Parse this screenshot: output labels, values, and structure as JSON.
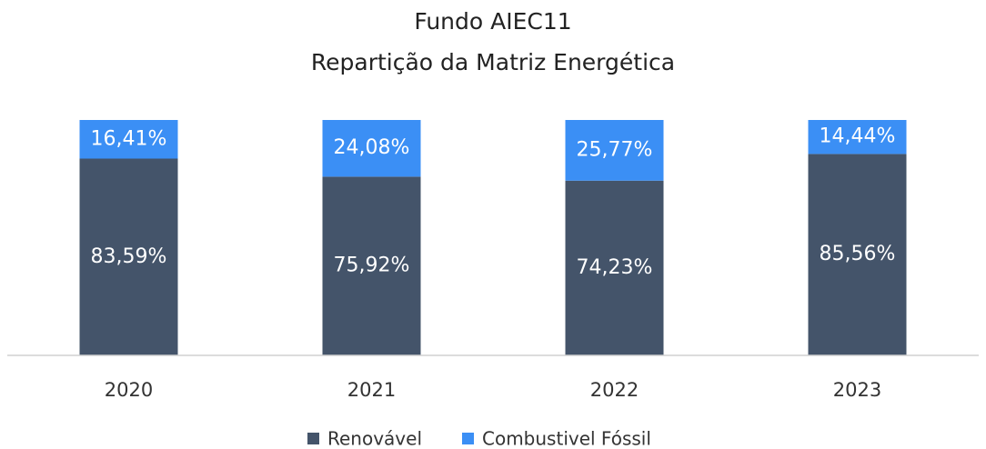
{
  "chart_data": {
    "type": "stacked_bar",
    "title": "Fundo AIEC11",
    "subtitle": "Repartição da Matriz Energética",
    "categories": [
      "2020",
      "2021",
      "2022",
      "2023"
    ],
    "series": [
      {
        "name": "Renovável",
        "color": "#44546a",
        "values": [
          83.59,
          75.92,
          74.23,
          85.56
        ],
        "value_labels": [
          "83,59%",
          "75,92%",
          "74,23%",
          "85,56%"
        ]
      },
      {
        "name": "Combustivel Fóssil",
        "color": "#3b8ff5",
        "values": [
          16.41,
          24.08,
          25.77,
          14.44
        ],
        "value_labels": [
          "16,41%",
          "24,08%",
          "25,77%",
          "14,44%"
        ]
      }
    ],
    "legend": "bottom"
  }
}
